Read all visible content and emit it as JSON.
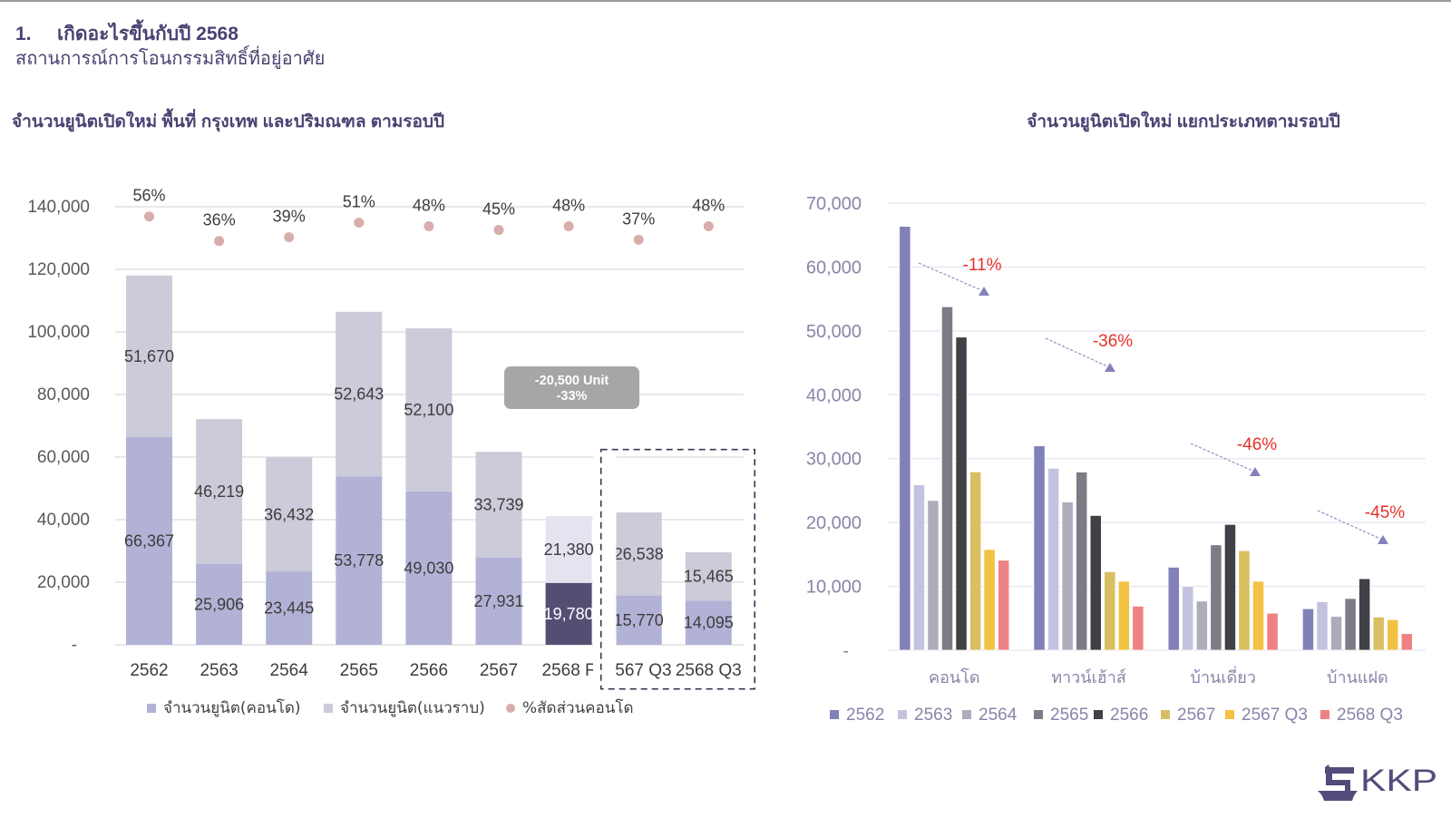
{
  "header": {
    "section_number": "1.",
    "title": "เกิดอะไรขึ้นกับปี 2568",
    "subtitle": "สถานการณ์การโอนกรรมสิทธิ์ที่อยู่อาศัย"
  },
  "colors": {
    "heading": "#4a4272",
    "accent_red": "#e8302a",
    "brand": "#544b7a"
  },
  "logo": {
    "text": "KKP",
    "icon": "kkp-emblem-icon"
  },
  "chart_data": [
    {
      "type": "bar",
      "stacked": true,
      "title": "จำนวนยูนิตเปิดใหม่ พื้นที่ กรุงเทพ และปริมณฑล ตามรอบปี",
      "xlabel": "",
      "ylabel": "",
      "categories": [
        "2562",
        "2563",
        "2564",
        "2565",
        "2566",
        "2567",
        "2568 F",
        "2567 Q3",
        "2568 Q3"
      ],
      "ylim": [
        0,
        140000
      ],
      "yticks": [
        0,
        20000,
        40000,
        60000,
        80000,
        100000,
        120000,
        140000
      ],
      "ytick_labels": [
        "-",
        "20,000",
        "40,000",
        "60,000",
        "80,000",
        "100,000",
        "120,000",
        "140,000"
      ],
      "grid": true,
      "series": [
        {
          "name": "จำนวนยูนิต(คอนโด)",
          "color": "#b2b2d6",
          "values": [
            66367,
            25906,
            23445,
            53778,
            49030,
            27931,
            19780,
            15770,
            14095
          ],
          "labels": [
            "66,367",
            "25,906",
            "23,445",
            "53,778",
            "49,030",
            "27,931",
            "19,780",
            "15,770",
            "14,095"
          ]
        },
        {
          "name": "จำนวนยูนิต(แนวราบ)",
          "color": "#cbcbd9",
          "values": [
            51670,
            46219,
            36432,
            52643,
            52100,
            33739,
            21380,
            26538,
            15465
          ],
          "labels": [
            "51,670",
            "46,219",
            "36,432",
            "52,643",
            "52,100",
            "33,739",
            "21,380",
            "26,538",
            "15,465"
          ]
        }
      ],
      "secondary_series": {
        "name": "%สัดส่วนคอนโด",
        "type": "scatter",
        "color": "#d9adab",
        "values": [
          56,
          36,
          39,
          51,
          48,
          45,
          48,
          37,
          48
        ],
        "labels": [
          "56%",
          "36%",
          "39%",
          "51%",
          "48%",
          "45%",
          "48%",
          "37%",
          "48%"
        ]
      },
      "highlight": {
        "category": "2568 F",
        "series_colors": [
          "#554e73",
          "#e4e4f0"
        ],
        "label_colors": [
          "#ffffff",
          "#3d3d3d"
        ]
      },
      "annotation": {
        "lines": [
          "-20,500 Unit",
          "-33%"
        ],
        "fill": "#a6a6a6",
        "text_color": "#ffffff"
      },
      "bracket": {
        "categories": [
          "2567 Q3",
          "2568 Q3"
        ],
        "style": "dashed",
        "color": "#3a3550"
      },
      "legend": {
        "position": "bottom"
      }
    },
    {
      "type": "bar",
      "stacked": false,
      "title": "จำนวนยูนิตเปิดใหม่ แยกประเภทตามรอบปี",
      "xlabel": "",
      "ylabel": "",
      "categories": [
        "คอนโด",
        "ทาวน์เฮ้าส์",
        "บ้านเดี่ยว",
        "บ้านแฝด"
      ],
      "ylim": [
        0,
        70000
      ],
      "yticks": [
        0,
        10000,
        20000,
        30000,
        40000,
        50000,
        60000,
        70000
      ],
      "ytick_labels": [
        "-",
        "10,000",
        "20,000",
        "30,000",
        "40,000",
        "50,000",
        "60,000",
        "70,000"
      ],
      "grid": true,
      "series": [
        {
          "name": "2562",
          "color": "#8180b8",
          "values": [
            66367,
            32000,
            13000,
            6500
          ]
        },
        {
          "name": "2563",
          "color": "#c3c3e0",
          "values": [
            25906,
            28500,
            10000,
            7600
          ]
        },
        {
          "name": "2564",
          "color": "#adacbb",
          "values": [
            23445,
            23200,
            7700,
            5300
          ]
        },
        {
          "name": "2565",
          "color": "#7c7b86",
          "values": [
            53778,
            27900,
            16500,
            8100
          ]
        },
        {
          "name": "2566",
          "color": "#414047",
          "values": [
            49030,
            21100,
            19700,
            11200
          ]
        },
        {
          "name": "2567",
          "color": "#d9bf62",
          "values": [
            27931,
            12300,
            15600,
            5200
          ]
        },
        {
          "name": "2567 Q3",
          "color": "#f2c242",
          "values": [
            15770,
            10800,
            10800,
            4800
          ]
        },
        {
          "name": "2568 Q3",
          "color": "#ee8282",
          "values": [
            14095,
            6900,
            5800,
            2600
          ]
        }
      ],
      "annotation_color": "#e8302a",
      "arrow_color": "#8481bb",
      "annotations": [
        {
          "category": "คอนโด",
          "text": "-11%"
        },
        {
          "category": "ทาวน์เฮ้าส์",
          "text": "-36%"
        },
        {
          "category": "บ้านเดี่ยว",
          "text": "-46%"
        },
        {
          "category": "บ้านแฝด",
          "text": "-45%"
        }
      ],
      "legend": {
        "position": "bottom"
      }
    }
  ]
}
